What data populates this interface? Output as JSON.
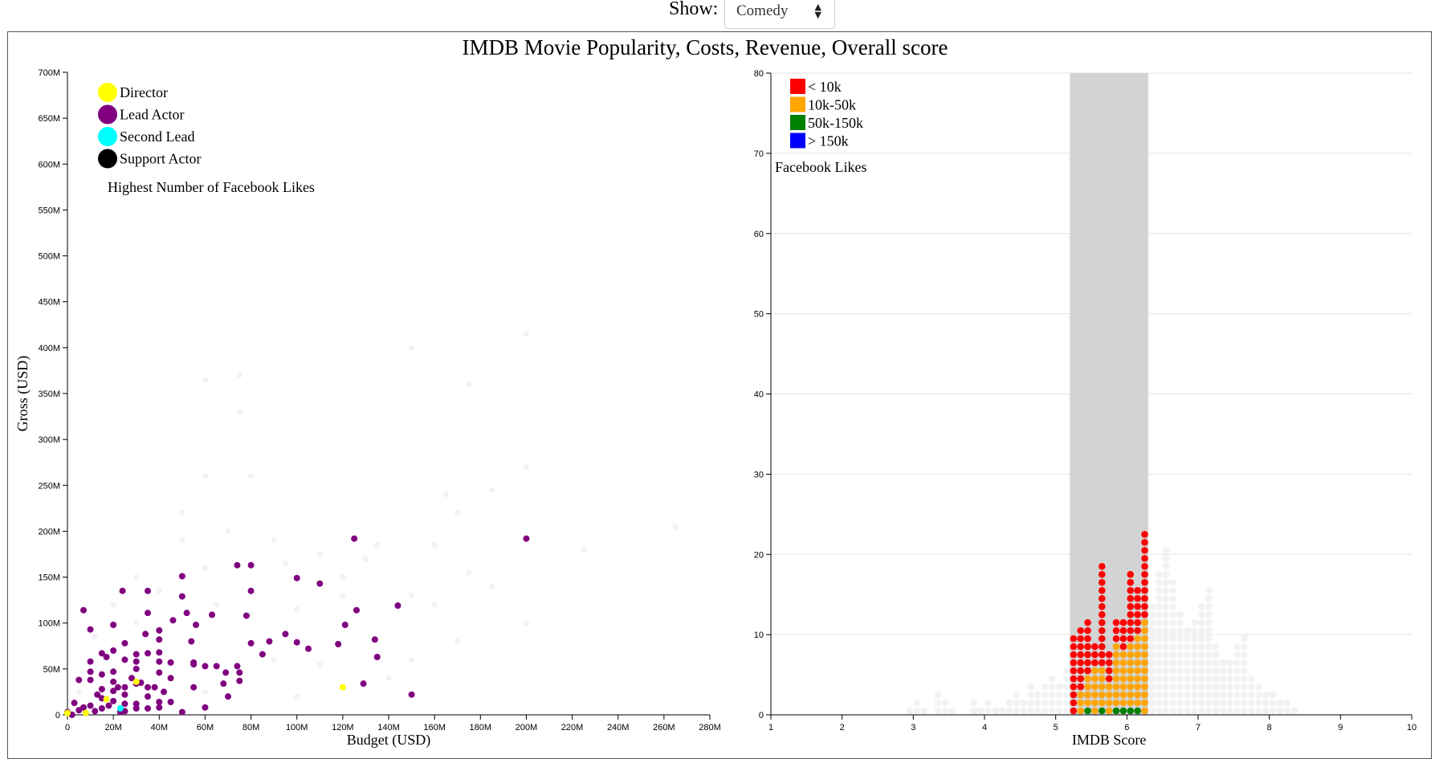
{
  "controls": {
    "show_label": "Show:",
    "selected": "Comedy",
    "arrows": "▲▼"
  },
  "title": "IMDB Movie Popularity, Costs, Revenue, Overall score",
  "colors": {
    "director": "#ffff00",
    "lead": "#800080",
    "second": "#00ffff",
    "support": "#000000",
    "lt10k": "#ff0000",
    "10k50k": "#ffa500",
    "50k150k": "#008000",
    "gt150k": "#0000ff",
    "faded": "#f2f2f5",
    "highlight": "#d3d3d3"
  },
  "chart_data": [
    {
      "type": "scatter",
      "xlabel": "Budget (USD)",
      "ylabel": "Gross (USD)",
      "xlim": [
        0,
        280
      ],
      "ylim": [
        0,
        700
      ],
      "units": "M",
      "x_ticks": [
        "0",
        "20M",
        "40M",
        "60M",
        "80M",
        "100M",
        "120M",
        "140M",
        "160M",
        "180M",
        "200M",
        "220M",
        "240M",
        "260M",
        "280M"
      ],
      "y_ticks": [
        "0",
        "50M",
        "100M",
        "150M",
        "200M",
        "250M",
        "300M",
        "350M",
        "400M",
        "450M",
        "500M",
        "550M",
        "600M",
        "650M",
        "700M"
      ],
      "legend": {
        "items": [
          "Director",
          "Lead Actor",
          "Second Lead",
          "Support Actor"
        ],
        "caption": "Highest Number of Facebook Likes",
        "placement": "top-left"
      },
      "series": [
        {
          "name": "Lead Actor",
          "color_key": "lead",
          "points": [
            [
              125,
              192
            ],
            [
              200,
              192
            ],
            [
              74,
              163
            ],
            [
              80,
              163
            ],
            [
              50,
              151
            ],
            [
              100,
              149
            ],
            [
              110,
              143
            ],
            [
              24,
              135
            ],
            [
              35,
              135
            ],
            [
              80,
              135
            ],
            [
              50,
              129
            ],
            [
              144,
              119
            ],
            [
              7,
              114
            ],
            [
              52,
              111
            ],
            [
              35,
              111
            ],
            [
              126,
              114
            ],
            [
              63,
              109
            ],
            [
              78,
              108
            ],
            [
              46,
              103
            ],
            [
              56,
              98
            ],
            [
              121,
              98
            ],
            [
              20,
              98
            ],
            [
              10,
              93
            ],
            [
              40,
              92
            ],
            [
              34,
              88
            ],
            [
              40,
              82
            ],
            [
              54,
              80
            ],
            [
              80,
              78
            ],
            [
              95,
              88
            ],
            [
              100,
              79
            ],
            [
              105,
              72
            ],
            [
              134,
              82
            ],
            [
              25,
              78
            ],
            [
              20,
              70
            ],
            [
              30,
              66
            ],
            [
              35,
              67
            ],
            [
              40,
              68
            ],
            [
              25,
              60
            ],
            [
              30,
              58
            ],
            [
              45,
              57
            ],
            [
              55,
              57
            ],
            [
              55,
              55
            ],
            [
              60,
              53
            ],
            [
              65,
              53
            ],
            [
              74,
              53
            ],
            [
              75,
              46
            ],
            [
              85,
              66
            ],
            [
              88,
              80
            ],
            [
              118,
              77
            ],
            [
              135,
              63
            ],
            [
              69,
              46
            ],
            [
              75,
              37
            ],
            [
              68,
              34
            ],
            [
              129,
              34
            ],
            [
              40,
              58
            ],
            [
              15,
              67
            ],
            [
              17,
              63
            ],
            [
              10,
              58
            ],
            [
              30,
              50
            ],
            [
              20,
              47
            ],
            [
              40,
              46
            ],
            [
              45,
              40
            ],
            [
              35,
              30
            ],
            [
              30,
              34
            ],
            [
              15,
              44
            ],
            [
              10,
              47
            ],
            [
              10,
              38
            ],
            [
              20,
              36
            ],
            [
              25,
              30
            ],
            [
              5,
              38
            ],
            [
              15,
              28
            ],
            [
              20,
              26
            ],
            [
              25,
              22
            ],
            [
              35,
              20
            ],
            [
              45,
              14
            ],
            [
              40,
              14
            ],
            [
              55,
              30
            ],
            [
              70,
              20
            ],
            [
              60,
              8
            ],
            [
              50,
              3
            ],
            [
              40,
              8
            ],
            [
              30,
              12
            ],
            [
              20,
              15
            ],
            [
              25,
              4
            ],
            [
              30,
              7
            ],
            [
              35,
              7
            ],
            [
              10,
              10
            ],
            [
              5,
              5
            ],
            [
              3,
              13
            ],
            [
              7,
              8
            ],
            [
              0,
              3
            ],
            [
              2,
              0
            ],
            [
              15,
              7
            ],
            [
              12,
              4
            ],
            [
              8,
              2
            ],
            [
              18,
              10
            ],
            [
              22,
              30
            ],
            [
              28,
              40
            ],
            [
              32,
              35
            ],
            [
              38,
              30
            ],
            [
              42,
              25
            ],
            [
              23,
              3
            ],
            [
              25,
              12
            ],
            [
              150,
              22
            ],
            [
              15,
              18
            ],
            [
              13,
              22
            ]
          ]
        },
        {
          "name": "Director",
          "color_key": "director",
          "points": [
            [
              120,
              30
            ],
            [
              30,
              36
            ],
            [
              17,
              17
            ],
            [
              0,
              2
            ],
            [
              8,
              2
            ]
          ]
        },
        {
          "name": "Second Lead",
          "color_key": "second",
          "points": [
            [
              23,
              7
            ]
          ]
        },
        {
          "name": "Support Actor",
          "color_key": "support",
          "points": []
        },
        {
          "name": "other genres",
          "color_key": "faded",
          "points": [
            [
              150,
              400
            ],
            [
              200,
              415
            ],
            [
              60,
              365
            ],
            [
              75,
              370
            ],
            [
              75,
              330
            ],
            [
              175,
              360
            ],
            [
              200,
              270
            ],
            [
              60,
              260
            ],
            [
              80,
              260
            ],
            [
              165,
              240
            ],
            [
              170,
              220
            ],
            [
              185,
              245
            ],
            [
              50,
              220
            ],
            [
              265,
              205
            ],
            [
              225,
              180
            ],
            [
              160,
              185
            ],
            [
              135,
              185
            ],
            [
              130,
              170
            ],
            [
              120,
              150
            ],
            [
              95,
              165
            ],
            [
              60,
              160
            ],
            [
              50,
              190
            ],
            [
              30,
              150
            ],
            [
              70,
              200
            ],
            [
              90,
              190
            ],
            [
              110,
              175
            ],
            [
              175,
              155
            ],
            [
              185,
              140
            ],
            [
              150,
              130
            ],
            [
              160,
              120
            ],
            [
              200,
              100
            ],
            [
              120,
              130
            ],
            [
              100,
              115
            ],
            [
              80,
              110
            ],
            [
              65,
              120
            ],
            [
              40,
              135
            ],
            [
              20,
              120
            ],
            [
              30,
              100
            ],
            [
              90,
              60
            ],
            [
              110,
              55
            ],
            [
              150,
              60
            ],
            [
              170,
              80
            ],
            [
              60,
              25
            ],
            [
              100,
              20
            ],
            [
              140,
              40
            ],
            [
              5,
              25
            ],
            [
              12,
              85
            ]
          ]
        }
      ]
    },
    {
      "type": "scatter",
      "subtype": "stacked-dot-histogram",
      "xlabel": "IMDB Score",
      "ylabel": "",
      "xlim": [
        1,
        10
      ],
      "ylim": [
        0,
        80
      ],
      "x_ticks": [
        "1",
        "2",
        "3",
        "4",
        "5",
        "6",
        "7",
        "8",
        "9",
        "10"
      ],
      "y_ticks": [
        "0",
        "10",
        "20",
        "30",
        "40",
        "50",
        "60",
        "70",
        "80"
      ],
      "grid": true,
      "highlight_range": [
        5.2,
        6.3
      ],
      "legend": {
        "items": [
          "< 10k",
          "10k-50k",
          "50k-150k",
          "> 150k"
        ],
        "caption": "Facebook Likes",
        "placement": "top-left"
      },
      "bins": [
        {
          "x": 5.25,
          "green": 0,
          "orange": 0,
          "red": 10
        },
        {
          "x": 5.35,
          "green": 0,
          "orange": 3,
          "red": 8
        },
        {
          "x": 5.45,
          "green": 1,
          "orange": 4,
          "red": 7
        },
        {
          "x": 5.55,
          "green": 0,
          "orange": 6,
          "red": 3
        },
        {
          "x": 5.65,
          "green": 1,
          "orange": 5,
          "red": 13
        },
        {
          "x": 5.75,
          "green": 0,
          "orange": 4,
          "red": 4
        },
        {
          "x": 5.85,
          "green": 1,
          "orange": 8,
          "red": 3
        },
        {
          "x": 5.95,
          "green": 1,
          "orange": 7,
          "red": 4
        },
        {
          "x": 6.05,
          "green": 1,
          "orange": 8,
          "red": 9
        },
        {
          "x": 6.15,
          "green": 1,
          "orange": 9,
          "red": 6
        },
        {
          "x": 6.25,
          "green": 0,
          "orange": 12,
          "red": 11
        }
      ],
      "faded_bins": [
        [
          2.95,
          1
        ],
        [
          3.05,
          2
        ],
        [
          3.15,
          1
        ],
        [
          3.35,
          3
        ],
        [
          3.45,
          2
        ],
        [
          3.55,
          1
        ],
        [
          3.85,
          2
        ],
        [
          3.95,
          1
        ],
        [
          4.05,
          2
        ],
        [
          4.15,
          1
        ],
        [
          4.25,
          1
        ],
        [
          4.35,
          2
        ],
        [
          4.45,
          3
        ],
        [
          4.55,
          2
        ],
        [
          4.65,
          4
        ],
        [
          4.75,
          3
        ],
        [
          4.85,
          4
        ],
        [
          4.95,
          5
        ],
        [
          5.05,
          4
        ],
        [
          5.15,
          6
        ],
        [
          6.35,
          14
        ],
        [
          6.45,
          18
        ],
        [
          6.55,
          21
        ],
        [
          6.65,
          17
        ],
        [
          6.75,
          13
        ],
        [
          6.85,
          11
        ],
        [
          6.95,
          12
        ],
        [
          7.05,
          14
        ],
        [
          7.15,
          16
        ],
        [
          7.25,
          9
        ],
        [
          7.35,
          7
        ],
        [
          7.45,
          7
        ],
        [
          7.55,
          9
        ],
        [
          7.65,
          10
        ],
        [
          7.75,
          5
        ],
        [
          7.85,
          4
        ],
        [
          7.95,
          3
        ],
        [
          8.05,
          3
        ],
        [
          8.15,
          2
        ],
        [
          8.25,
          2
        ],
        [
          8.35,
          1
        ]
      ]
    }
  ]
}
